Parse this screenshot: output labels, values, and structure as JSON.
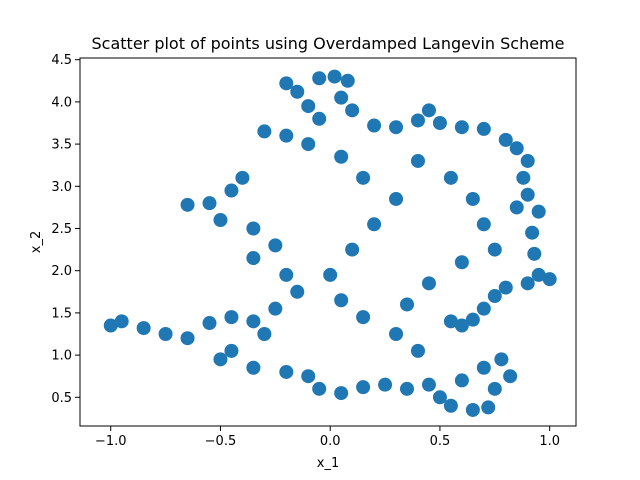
{
  "chart_data": {
    "type": "scatter",
    "title": "Scatter plot of points using Overdamped Langevin Scheme",
    "xlabel": "x_1",
    "ylabel": "x_2",
    "xlim": [
      -1.14,
      1.12
    ],
    "ylim": [
      0.16,
      4.52
    ],
    "xticks": [
      -1.0,
      -0.5,
      0.0,
      0.5,
      1.0
    ],
    "xtick_labels": [
      "−1.0",
      "−0.5",
      "0.0",
      "0.5",
      "1.0"
    ],
    "yticks": [
      0.5,
      1.0,
      1.5,
      2.0,
      2.5,
      3.0,
      3.5,
      4.0,
      4.5
    ],
    "ytick_labels": [
      "0.5",
      "1.0",
      "1.5",
      "2.0",
      "2.5",
      "3.0",
      "3.5",
      "4.0",
      "4.5"
    ],
    "grid": false,
    "marker_color": "#1f77b4",
    "series": [
      {
        "values_xy": [
          [
            -0.05,
            4.28
          ],
          [
            0.02,
            4.3
          ],
          [
            0.08,
            4.25
          ],
          [
            -0.2,
            4.22
          ],
          [
            -0.15,
            4.12
          ],
          [
            0.05,
            4.05
          ],
          [
            -0.1,
            3.95
          ],
          [
            0.1,
            3.9
          ],
          [
            -0.05,
            3.8
          ],
          [
            0.2,
            3.72
          ],
          [
            0.3,
            3.7
          ],
          [
            -0.3,
            3.65
          ],
          [
            -0.2,
            3.6
          ],
          [
            0.4,
            3.78
          ],
          [
            0.45,
            3.9
          ],
          [
            0.5,
            3.75
          ],
          [
            0.6,
            3.7
          ],
          [
            0.7,
            3.68
          ],
          [
            0.8,
            3.55
          ],
          [
            0.85,
            3.45
          ],
          [
            0.9,
            3.3
          ],
          [
            0.88,
            3.1
          ],
          [
            0.9,
            2.9
          ],
          [
            0.95,
            2.7
          ],
          [
            0.85,
            2.75
          ],
          [
            0.92,
            2.45
          ],
          [
            0.93,
            2.2
          ],
          [
            0.95,
            1.95
          ],
          [
            1.0,
            1.9
          ],
          [
            0.9,
            1.85
          ],
          [
            0.8,
            1.8
          ],
          [
            0.75,
            1.7
          ],
          [
            0.7,
            1.55
          ],
          [
            0.65,
            1.42
          ],
          [
            0.6,
            1.35
          ],
          [
            0.55,
            1.4
          ],
          [
            -0.55,
            2.8
          ],
          [
            -0.65,
            2.78
          ],
          [
            -0.45,
            2.95
          ],
          [
            -0.4,
            3.1
          ],
          [
            -0.5,
            2.6
          ],
          [
            -0.35,
            2.5
          ],
          [
            -0.25,
            2.3
          ],
          [
            -0.35,
            2.15
          ],
          [
            -0.2,
            1.95
          ],
          [
            -0.15,
            1.75
          ],
          [
            -0.25,
            1.55
          ],
          [
            -1.0,
            1.35
          ],
          [
            -0.95,
            1.4
          ],
          [
            -0.85,
            1.32
          ],
          [
            -0.75,
            1.25
          ],
          [
            -0.65,
            1.2
          ],
          [
            -0.55,
            1.38
          ],
          [
            -0.45,
            1.45
          ],
          [
            -0.35,
            1.4
          ],
          [
            -0.3,
            1.25
          ],
          [
            -0.45,
            1.05
          ],
          [
            -0.5,
            0.95
          ],
          [
            -0.35,
            0.85
          ],
          [
            -0.2,
            0.8
          ],
          [
            -0.1,
            0.75
          ],
          [
            -0.05,
            0.6
          ],
          [
            0.05,
            0.55
          ],
          [
            0.15,
            0.62
          ],
          [
            0.25,
            0.65
          ],
          [
            0.35,
            0.6
          ],
          [
            0.45,
            0.65
          ],
          [
            0.5,
            0.5
          ],
          [
            0.55,
            0.4
          ],
          [
            0.65,
            0.35
          ],
          [
            0.72,
            0.38
          ],
          [
            0.6,
            0.7
          ],
          [
            0.7,
            0.85
          ],
          [
            0.78,
            0.95
          ],
          [
            0.82,
            0.75
          ],
          [
            0.75,
            0.6
          ],
          [
            0.4,
            1.05
          ],
          [
            0.3,
            1.25
          ],
          [
            0.15,
            1.45
          ],
          [
            0.05,
            1.65
          ],
          [
            0.0,
            1.95
          ],
          [
            0.1,
            2.25
          ],
          [
            0.2,
            2.55
          ],
          [
            0.3,
            2.85
          ],
          [
            0.15,
            3.1
          ],
          [
            0.05,
            3.35
          ],
          [
            -0.1,
            3.5
          ],
          [
            0.4,
            3.3
          ],
          [
            0.55,
            3.1
          ],
          [
            0.65,
            2.85
          ],
          [
            0.7,
            2.55
          ],
          [
            0.75,
            2.25
          ],
          [
            0.6,
            2.1
          ],
          [
            0.45,
            1.85
          ],
          [
            0.35,
            1.6
          ]
        ]
      }
    ]
  }
}
